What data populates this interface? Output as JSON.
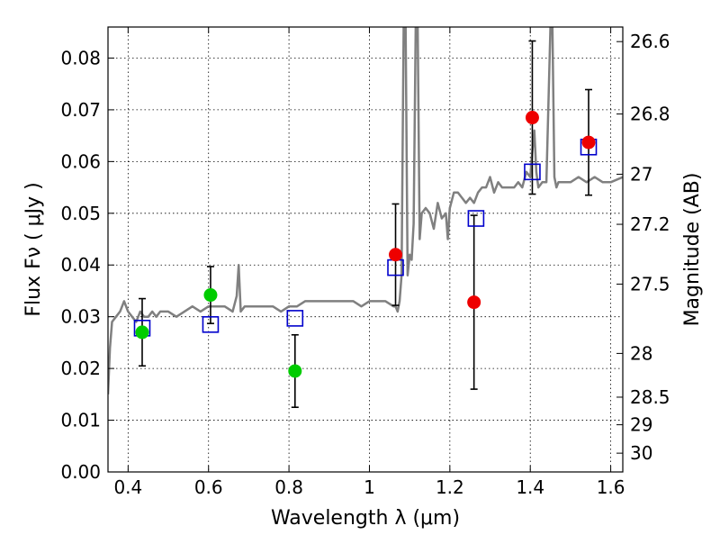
{
  "chart_data": {
    "type": "scatter",
    "xlabel": "Wavelength  λ (μm)",
    "ylabel": "Flux  Fν  ( μJy )",
    "ylabel_right": "Magnitude (AB)",
    "xlim": [
      0.35,
      1.63
    ],
    "ylim": [
      0.0,
      0.086
    ],
    "grid": true,
    "x_ticks": [
      0.4,
      0.6,
      0.8,
      1.0,
      1.2,
      1.4,
      1.6
    ],
    "x_tick_labels": [
      "0.4",
      "0.6",
      "0.8",
      "1",
      "1.2",
      "1.4",
      "1.6"
    ],
    "y_ticks": [
      0.0,
      0.01,
      0.02,
      0.03,
      0.04,
      0.05,
      0.06,
      0.07,
      0.08
    ],
    "y_tick_labels": [
      "0.00",
      "0.01",
      "0.02",
      "0.03",
      "0.04",
      "0.05",
      "0.06",
      "0.07",
      "0.08"
    ],
    "mag_ticks": [
      26.6,
      26.8,
      27,
      27.2,
      27.5,
      28,
      28.5,
      29,
      30
    ],
    "mag_tick_labels": [
      "26.6",
      "26.8",
      "27",
      "27.2",
      "27.5",
      "28",
      "28.5",
      "29",
      "30"
    ],
    "series": [
      {
        "kind": "model_spectrum",
        "color": "#808080",
        "x": [
          0.35,
          0.355,
          0.36,
          0.37,
          0.38,
          0.39,
          0.4,
          0.41,
          0.42,
          0.43,
          0.44,
          0.45,
          0.46,
          0.47,
          0.48,
          0.5,
          0.52,
          0.54,
          0.56,
          0.58,
          0.6,
          0.62,
          0.64,
          0.66,
          0.67,
          0.675,
          0.68,
          0.69,
          0.7,
          0.72,
          0.74,
          0.76,
          0.78,
          0.8,
          0.82,
          0.84,
          0.86,
          0.88,
          0.9,
          0.92,
          0.94,
          0.96,
          0.98,
          1.0,
          1.02,
          1.04,
          1.06,
          1.065,
          1.07,
          1.075,
          1.08,
          1.085,
          1.09,
          1.095,
          1.1,
          1.105,
          1.11,
          1.115,
          1.12,
          1.125,
          1.13,
          1.14,
          1.15,
          1.16,
          1.17,
          1.18,
          1.19,
          1.195,
          1.2,
          1.21,
          1.22,
          1.23,
          1.24,
          1.25,
          1.26,
          1.27,
          1.28,
          1.29,
          1.3,
          1.31,
          1.32,
          1.33,
          1.34,
          1.35,
          1.36,
          1.37,
          1.38,
          1.39,
          1.4,
          1.405,
          1.41,
          1.415,
          1.42,
          1.43,
          1.44,
          1.45,
          1.455,
          1.46,
          1.465,
          1.47,
          1.48,
          1.5,
          1.52,
          1.54,
          1.56,
          1.58,
          1.6,
          1.63
        ],
        "y": [
          0.015,
          0.024,
          0.029,
          0.03,
          0.031,
          0.033,
          0.031,
          0.03,
          0.029,
          0.031,
          0.03,
          0.03,
          0.031,
          0.03,
          0.031,
          0.031,
          0.03,
          0.031,
          0.032,
          0.031,
          0.032,
          0.032,
          0.032,
          0.031,
          0.034,
          0.04,
          0.031,
          0.032,
          0.032,
          0.032,
          0.032,
          0.032,
          0.031,
          0.032,
          0.032,
          0.033,
          0.033,
          0.033,
          0.033,
          0.033,
          0.033,
          0.033,
          0.032,
          0.033,
          0.033,
          0.033,
          0.032,
          0.032,
          0.031,
          0.033,
          0.038,
          0.086,
          0.086,
          0.038,
          0.042,
          0.041,
          0.048,
          0.086,
          0.086,
          0.045,
          0.05,
          0.051,
          0.05,
          0.047,
          0.052,
          0.049,
          0.05,
          0.045,
          0.051,
          0.054,
          0.054,
          0.053,
          0.052,
          0.053,
          0.052,
          0.054,
          0.055,
          0.055,
          0.057,
          0.054,
          0.056,
          0.055,
          0.055,
          0.055,
          0.055,
          0.056,
          0.055,
          0.058,
          0.057,
          0.062,
          0.066,
          0.058,
          0.055,
          0.056,
          0.056,
          0.086,
          0.086,
          0.057,
          0.055,
          0.056,
          0.056,
          0.056,
          0.057,
          0.056,
          0.057,
          0.056,
          0.056,
          0.057
        ]
      },
      {
        "kind": "model_photometry",
        "marker": "open-square",
        "color": "#0000cc",
        "x": [
          0.435,
          0.605,
          0.815,
          1.065,
          1.265,
          1.405,
          1.545
        ],
        "y": [
          0.0278,
          0.0285,
          0.0297,
          0.0395,
          0.049,
          0.058,
          0.0628
        ]
      },
      {
        "kind": "observed",
        "marker": "filled-circle",
        "color": "#00cc00",
        "x": [
          0.435,
          0.605,
          0.815
        ],
        "y": [
          0.027,
          0.0342,
          0.0195
        ],
        "err": [
          0.0065,
          0.0055,
          0.007
        ]
      },
      {
        "kind": "observed",
        "marker": "filled-circle",
        "color": "#ee0000",
        "x": [
          1.065,
          1.26,
          1.405,
          1.545
        ],
        "y": [
          0.042,
          0.0328,
          0.0685,
          0.0637
        ],
        "err": [
          0.0098,
          0.0168,
          0.0148,
          0.0102
        ]
      }
    ]
  }
}
